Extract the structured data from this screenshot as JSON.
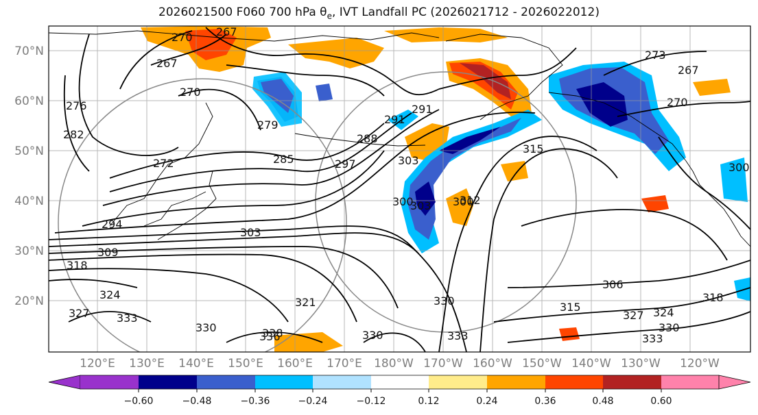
{
  "title": {
    "prefix": "2026021500 F060 700 hPa θ",
    "sub": "e",
    "suffix": ", IVT Landfall PC (2026021712 - 2026022012)"
  },
  "lat_labels": [
    "70°N",
    "60°N",
    "50°N",
    "40°N",
    "30°N",
    "20°N"
  ],
  "lon_labels": [
    "120°E",
    "130°E",
    "140°E",
    "150°E",
    "160°E",
    "170°E",
    "180°W",
    "170°W",
    "160°W",
    "150°W",
    "140°W",
    "130°W",
    "120°W"
  ],
  "contour_labels": [
    "267",
    "267",
    "270",
    "270",
    "273",
    "267",
    "276",
    "282",
    "279",
    "285",
    "288",
    "291",
    "291",
    "297",
    "303",
    "300",
    "303",
    "312",
    "315",
    "270",
    "300",
    "306",
    "300",
    "272",
    "294",
    "303",
    "309",
    "318",
    "324",
    "327",
    "321",
    "330",
    "333",
    "336",
    "338",
    "330",
    "333",
    "330",
    "327",
    "324",
    "333",
    "330",
    "315",
    "318"
  ],
  "colorbar": {
    "ticks": [
      "−0.60",
      "−0.48",
      "−0.36",
      "−0.24",
      "−0.12",
      "0.12",
      "0.24",
      "0.36",
      "0.48",
      "0.60"
    ],
    "colors": [
      "#9932cc",
      "#00008b",
      "#3a5fcd",
      "#00bfff",
      "#b0e2ff",
      "#ffffff",
      "#ffec8b",
      "#ffa500",
      "#ff4500",
      "#b22222",
      "#ff82ab"
    ]
  },
  "icons": {
    "extend-left": "triangle-left-icon",
    "extend-right": "triangle-right-icon"
  }
}
